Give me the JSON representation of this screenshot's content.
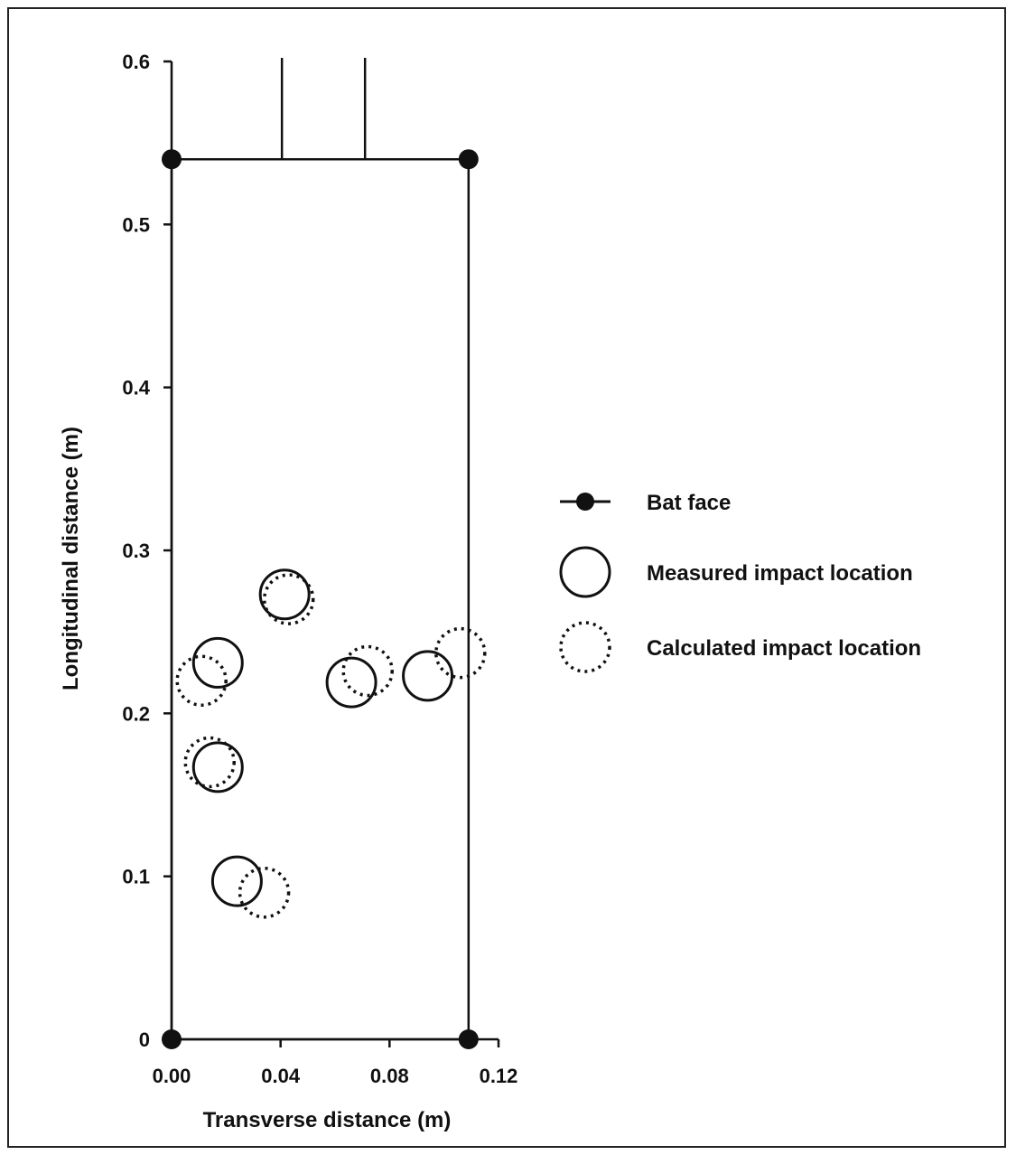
{
  "chart_data": {
    "type": "scatter",
    "xlabel": "Transverse distance (m)",
    "ylabel": "Longitudinal distance (m)",
    "xlim": [
      0,
      0.12
    ],
    "ylim": [
      0,
      0.6
    ],
    "x_ticks": [
      "0.00",
      "0.04",
      "0.08",
      "0.12"
    ],
    "x_tick_values": [
      0,
      0.04,
      0.08,
      0.12
    ],
    "y_ticks": [
      "0",
      "0.1",
      "0.2",
      "0.3",
      "0.4",
      "0.5",
      "0.6"
    ],
    "y_tick_values": [
      0,
      0.1,
      0.2,
      0.3,
      0.4,
      0.5,
      0.6
    ],
    "grid": false,
    "legend_position": "right",
    "series": [
      {
        "name": "Bat face",
        "style": "line-with-filled-markers",
        "points": [
          [
            0,
            0
          ],
          [
            0.109,
            0
          ],
          [
            0.109,
            0.54
          ],
          [
            0,
            0.54
          ],
          [
            0,
            0
          ]
        ],
        "handle": [
          [
            0.0405,
            0.54
          ],
          [
            0.0405,
            0.6
          ],
          [
            0.071,
            0.6
          ],
          [
            0.071,
            0.54
          ]
        ]
      },
      {
        "name": "Measured impact location",
        "style": "open-circle-solid",
        "points": [
          [
            0.017,
            0.231
          ],
          [
            0.0415,
            0.273
          ],
          [
            0.017,
            0.167
          ],
          [
            0.024,
            0.097
          ],
          [
            0.066,
            0.219
          ],
          [
            0.094,
            0.223
          ]
        ]
      },
      {
        "name": "Calculated impact location",
        "style": "open-circle-dotted",
        "points": [
          [
            0.011,
            0.22
          ],
          [
            0.043,
            0.27
          ],
          [
            0.014,
            0.17
          ],
          [
            0.034,
            0.09
          ],
          [
            0.072,
            0.226
          ],
          [
            0.106,
            0.237
          ]
        ]
      }
    ]
  },
  "legend": {
    "items": [
      {
        "label": "Bat face"
      },
      {
        "label": "Measured impact location"
      },
      {
        "label": "Calculated impact location"
      }
    ]
  }
}
